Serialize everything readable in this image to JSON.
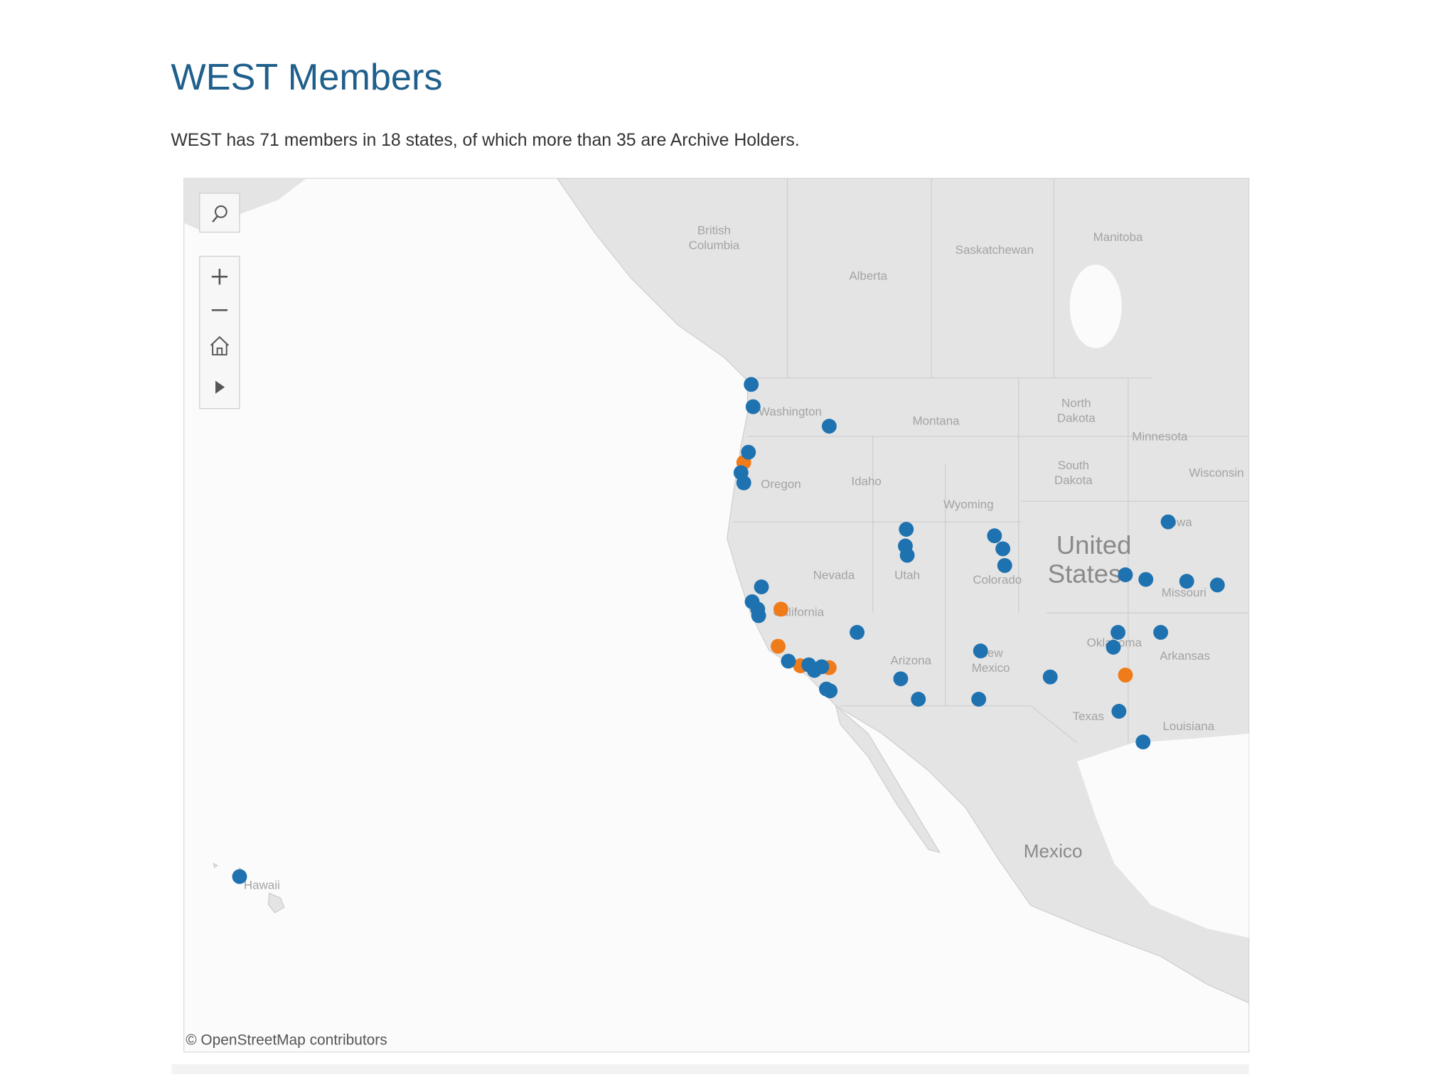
{
  "header": {
    "title": "WEST Members",
    "description": "WEST has 71 members in 18 states, of which more than 35 are Archive Holders."
  },
  "map": {
    "labels": [
      "British",
      "Columbia",
      "Alberta",
      "Saskatchewan",
      "Manitoba",
      "North",
      "Dakota",
      "Washington",
      "Montana",
      "Minnesota",
      "South",
      "Dakota",
      "Wisconsin",
      "Oregon",
      "Idaho",
      "Wyoming",
      "Iowa",
      "Nevada",
      "Utah",
      "Colorado",
      "Missouri",
      "California",
      "Oklahoma",
      "Arkansas",
      "Arizona",
      "New",
      "Mexico",
      "Texas",
      "Louisiana",
      "Hawaii"
    ],
    "country_labels": [
      "United",
      "States",
      "Mexico"
    ],
    "attribution": "© OpenStreetMap contributors"
  }
}
